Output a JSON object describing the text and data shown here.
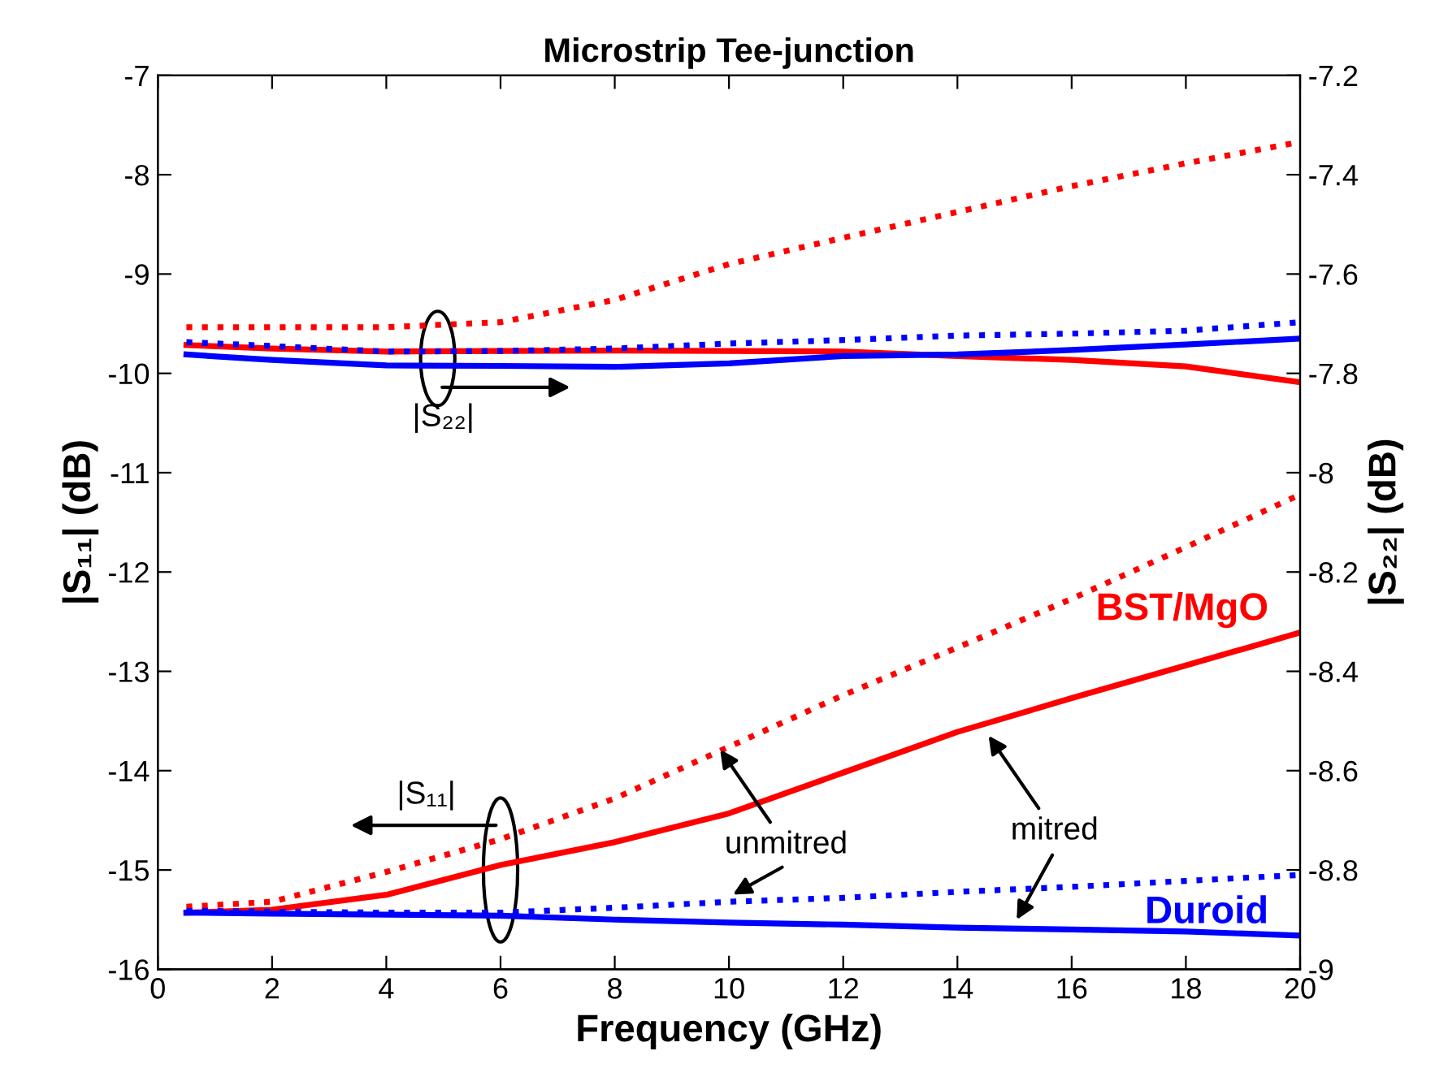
{
  "chart_data": {
    "type": "line",
    "title": "Microstrip Tee-junction",
    "xlabel": "Frequency (GHz)",
    "ylabel": "|S₁₁| (dB)",
    "y2label": "|S₂₂| (dB)",
    "x": [
      0.5,
      2,
      4,
      6,
      8,
      10,
      12,
      14,
      16,
      18,
      20
    ],
    "series": [
      {
        "name": "BST/MgO",
        "color": "#ff0000",
        "line_style": "solid",
        "values": [
          -15.43,
          -15.4,
          -15.25,
          -14.95,
          -14.72,
          -14.43,
          -14.02,
          -13.61,
          -13.27,
          -12.94,
          -12.61
        ]
      },
      {
        "color": "#ff0000",
        "line_style": "dotted",
        "values": [
          -15.37,
          -15.32,
          -15.02,
          -14.69,
          -14.28,
          -13.76,
          -13.24,
          -12.76,
          -12.27,
          -11.75,
          -11.22
        ]
      },
      {
        "name": "Duroid",
        "color": "#0000ff",
        "line_style": "solid",
        "values": [
          -15.43,
          -15.44,
          -15.45,
          -15.46,
          -15.5,
          -15.53,
          -15.55,
          -15.58,
          -15.6,
          -15.62,
          -15.66
        ]
      },
      {
        "color": "#0000ff",
        "line_style": "dotted",
        "values": [
          -15.41,
          -15.42,
          -15.43,
          -15.43,
          -15.38,
          -15.32,
          -15.28,
          -15.22,
          -15.17,
          -15.11,
          -15.05
        ]
      },
      {
        "color": "#ff0000",
        "line_style": "solid",
        "axis": "y2",
        "values": [
          -7.743,
          -7.75,
          -7.756,
          -7.755,
          -7.754,
          -7.755,
          -7.756,
          -7.765,
          -7.773,
          -7.786,
          -7.818
        ]
      },
      {
        "color": "#ff0000",
        "line_style": "dotted",
        "axis": "y2",
        "values": [
          -7.707,
          -7.707,
          -7.707,
          -7.697,
          -7.652,
          -7.58,
          -7.527,
          -7.475,
          -7.423,
          -7.377,
          -7.334
        ]
      },
      {
        "color": "#0000ff",
        "line_style": "solid",
        "axis": "y2",
        "values": [
          -7.762,
          -7.773,
          -7.784,
          -7.785,
          -7.787,
          -7.78,
          -7.765,
          -7.762,
          -7.753,
          -7.742,
          -7.73
        ]
      },
      {
        "color": "#0000ff",
        "line_style": "dotted",
        "axis": "y2",
        "values": [
          -7.737,
          -7.745,
          -7.756,
          -7.755,
          -7.75,
          -7.74,
          -7.733,
          -7.724,
          -7.72,
          -7.714,
          -7.697
        ]
      }
    ],
    "xlim": [
      0,
      20
    ],
    "xticks": [
      0,
      2,
      4,
      6,
      8,
      10,
      12,
      14,
      16,
      18,
      20
    ],
    "ylim": [
      -16,
      -7
    ],
    "yticks": [
      -16,
      -15,
      -14,
      -13,
      -12,
      -11,
      -10,
      -9,
      -8,
      -7
    ],
    "y2lim": [
      -9,
      -7.2
    ],
    "y2ticks": [
      -9,
      -8.8,
      -8.6,
      -8.4,
      -8.2,
      -8,
      -7.8,
      -7.6,
      -7.4,
      -7.2
    ],
    "marker": "none",
    "grid": false,
    "legend": false,
    "annotations": [
      "|S₂₂|",
      "|S₁₁|",
      {
        "text": "unmitred",
        "x": 9.8,
        "y": -13.75
      },
      {
        "text": "mitred",
        "x": 14.5,
        "y": -13.61
      }
    ]
  }
}
